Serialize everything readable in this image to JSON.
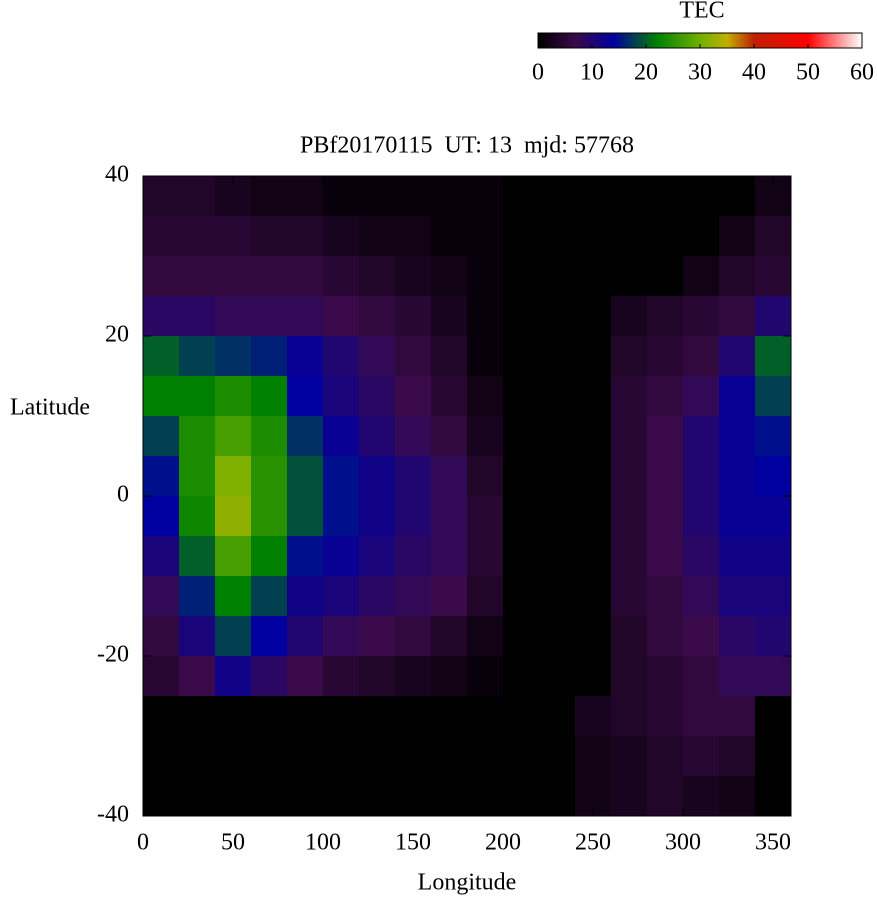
{
  "chart_data": {
    "type": "heatmap",
    "title": "PBf20170115  UT: 13  mjd: 57768",
    "xlabel": "Longitude",
    "ylabel": "Latitude",
    "xlim": [
      0,
      360
    ],
    "xticks": [
      0,
      50,
      100,
      150,
      200,
      250,
      300,
      350
    ],
    "ylim": [
      -40,
      40
    ],
    "yticks": [
      -40,
      -20,
      0,
      20,
      40
    ],
    "x": [
      10,
      30,
      50,
      70,
      90,
      110,
      130,
      150,
      170,
      190,
      210,
      230,
      250,
      270,
      290,
      310,
      330,
      350
    ],
    "y": [
      37.5,
      32.5,
      27.5,
      22.5,
      17.5,
      12.5,
      7.5,
      2.5,
      -2.5,
      -7.5,
      -12.5,
      -17.5,
      -22.5,
      -27.5,
      -32.5,
      -37.5
    ],
    "z": [
      [
        4,
        4,
        3,
        2,
        2,
        1,
        1,
        1,
        1,
        1,
        0,
        0,
        0,
        0,
        0,
        0,
        0,
        2
      ],
      [
        5,
        5,
        5,
        4,
        4,
        3,
        2,
        2,
        1,
        1,
        0,
        0,
        0,
        0,
        0,
        0,
        2,
        4
      ],
      [
        6,
        6,
        6,
        6,
        6,
        5,
        4,
        3,
        2,
        1,
        0,
        0,
        0,
        0,
        0,
        2,
        4,
        5
      ],
      [
        9,
        9,
        8,
        8,
        8,
        7,
        6,
        5,
        3,
        1,
        0,
        0,
        0,
        3,
        4,
        5,
        6,
        10
      ],
      [
        20,
        18,
        17,
        16,
        13,
        10,
        8,
        6,
        4,
        1,
        0,
        0,
        0,
        4,
        5,
        6,
        10,
        20
      ],
      [
        22,
        22,
        24,
        22,
        14,
        11,
        9,
        7,
        5,
        2,
        0,
        0,
        0,
        5,
        6,
        8,
        13,
        18
      ],
      [
        18,
        24,
        27,
        24,
        17,
        13,
        10,
        8,
        6,
        3,
        0,
        0,
        0,
        5,
        7,
        10,
        13,
        15
      ],
      [
        15,
        24,
        31,
        25,
        19,
        15,
        12,
        10,
        8,
        4,
        0,
        0,
        0,
        5,
        7,
        10,
        13,
        14
      ],
      [
        14,
        23,
        32,
        25,
        19,
        15,
        12,
        10,
        8,
        5,
        0,
        0,
        0,
        5,
        7,
        10,
        13,
        13
      ],
      [
        11,
        20,
        27,
        22,
        15,
        13,
        11,
        9,
        8,
        5,
        0,
        0,
        0,
        5,
        7,
        9,
        12,
        12
      ],
      [
        8,
        16,
        22,
        18,
        12,
        11,
        9,
        8,
        7,
        4,
        0,
        0,
        0,
        5,
        6,
        8,
        11,
        11
      ],
      [
        6,
        11,
        18,
        14,
        10,
        8,
        7,
        6,
        4,
        2,
        0,
        0,
        0,
        4,
        6,
        7,
        9,
        10
      ],
      [
        5,
        7,
        12,
        9,
        7,
        5,
        4,
        3,
        2,
        1,
        0,
        0,
        0,
        4,
        5,
        6,
        8,
        8
      ],
      [
        0,
        0,
        0,
        0,
        0,
        0,
        0,
        0,
        0,
        0,
        0,
        0,
        3,
        4,
        5,
        6,
        6,
        0
      ],
      [
        0,
        0,
        0,
        0,
        0,
        0,
        0,
        0,
        0,
        0,
        0,
        0,
        2,
        3,
        4,
        5,
        4,
        0
      ],
      [
        0,
        0,
        0,
        0,
        0,
        0,
        0,
        0,
        0,
        0,
        0,
        0,
        2,
        3,
        4,
        3,
        2,
        0
      ]
    ],
    "colorbar_title": "TEC",
    "clim": [
      0,
      60
    ],
    "colorbar_ticks": [
      0,
      10,
      20,
      30,
      40,
      50,
      60
    ],
    "colorscale": [
      [
        0,
        "#000000"
      ],
      [
        7,
        "#3a0a4a"
      ],
      [
        14,
        "#0000a0"
      ],
      [
        22,
        "#008000"
      ],
      [
        30,
        "#70b000"
      ],
      [
        35,
        "#c0b000"
      ],
      [
        40,
        "#c02000"
      ],
      [
        50,
        "#ff0000"
      ],
      [
        60,
        "#ffffff"
      ]
    ]
  }
}
